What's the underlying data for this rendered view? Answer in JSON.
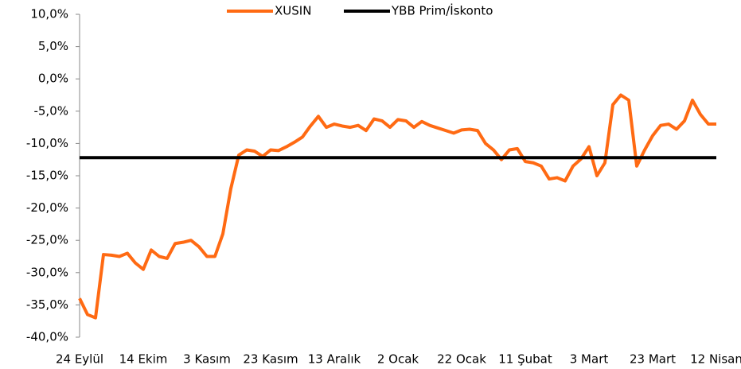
{
  "chart_data": {
    "type": "line",
    "categories": [
      "24 Eylül",
      null,
      null,
      null,
      null,
      null,
      null,
      null,
      "14 Ekim",
      null,
      null,
      null,
      null,
      null,
      null,
      null,
      "3 Kasım",
      null,
      null,
      null,
      null,
      null,
      null,
      null,
      "23 Kasım",
      null,
      null,
      null,
      null,
      null,
      null,
      null,
      "13 Aralık",
      null,
      null,
      null,
      null,
      null,
      null,
      null,
      "2 Ocak",
      null,
      null,
      null,
      null,
      null,
      null,
      null,
      "22 Ocak",
      null,
      null,
      null,
      null,
      null,
      null,
      null,
      "11 Şubat",
      null,
      null,
      null,
      null,
      null,
      null,
      null,
      "3 Mart",
      null,
      null,
      null,
      null,
      null,
      null,
      null,
      "23 Mart",
      null,
      null,
      null,
      null,
      null,
      null,
      null,
      "12 Nisan"
    ],
    "series": [
      {
        "name": "XUSIN",
        "color": "#ff6a13",
        "values": [
          -34,
          -36.5,
          -37,
          -27.2,
          -27.3,
          -27.5,
          -27,
          -28.5,
          -29.5,
          -26.5,
          -27.5,
          -27.8,
          -25.5,
          -25.3,
          -25,
          -26,
          -27.5,
          -27.5,
          -24,
          -17,
          -11.8,
          -11,
          -11.2,
          -12,
          -11,
          -11.1,
          -10.5,
          -9.8,
          -9,
          -7.3,
          -5.8,
          -7.5,
          -7,
          -7.3,
          -7.5,
          -7.2,
          -8,
          -6.2,
          -6.5,
          -7.5,
          -6.3,
          -6.5,
          -7.5,
          -6.6,
          -7.2,
          -7.6,
          -8,
          -8.4,
          -7.9,
          -7.8,
          -8,
          -10,
          -11,
          -12.5,
          -11,
          -10.8,
          -12.8,
          -13,
          -13.5,
          -15.5,
          -15.3,
          -15.8,
          -13.5,
          -12.4,
          -10.5,
          -15,
          -13,
          -4,
          -2.5,
          -3.3,
          -13.5,
          -11,
          -8.8,
          -7.2,
          -7,
          -7.8,
          -6.5,
          -3.3,
          -5.5,
          -7,
          -7
        ]
      },
      {
        "name": "YBB Prim/İskonto",
        "color": "#000000",
        "values": [
          -12.2,
          -12.2,
          -12.2,
          -12.2,
          -12.2,
          -12.2,
          -12.2,
          -12.2,
          -12.2,
          -12.2,
          -12.2,
          -12.2,
          -12.2,
          -12.2,
          -12.2,
          -12.2,
          -12.2,
          -12.2,
          -12.2,
          -12.2,
          -12.2,
          -12.2,
          -12.2,
          -12.2,
          -12.2,
          -12.2,
          -12.2,
          -12.2,
          -12.2,
          -12.2,
          -12.2,
          -12.2,
          -12.2,
          -12.2,
          -12.2,
          -12.2,
          -12.2,
          -12.2,
          -12.2,
          -12.2,
          -12.2,
          -12.2,
          -12.2,
          -12.2,
          -12.2,
          -12.2,
          -12.2,
          -12.2,
          -12.2,
          -12.2,
          -12.2,
          -12.2,
          -12.2,
          -12.2,
          -12.2,
          -12.2,
          -12.2,
          -12.2,
          -12.2,
          -12.2,
          -12.2,
          -12.2,
          -12.2,
          -12.2,
          -12.2,
          -12.2,
          -12.2,
          -12.2,
          -12.2,
          -12.2,
          -12.2,
          -12.2,
          -12.2,
          -12.2,
          -12.2,
          -12.2,
          -12.2,
          -12.2,
          -12.2,
          -12.2,
          -12.2
        ]
      }
    ],
    "ylim": [
      -40,
      10
    ],
    "yticks": [
      {
        "value": -40,
        "label": "-40,0%"
      },
      {
        "value": -35,
        "label": "-35,0%"
      },
      {
        "value": -30,
        "label": "-30,0%"
      },
      {
        "value": -25,
        "label": "-25,0%"
      },
      {
        "value": -20,
        "label": "-20,0%"
      },
      {
        "value": -15,
        "label": "-15,0%"
      },
      {
        "value": -10,
        "label": "-10,0%"
      },
      {
        "value": -5,
        "label": "-5,0%"
      },
      {
        "value": 0,
        "label": "0,0%"
      },
      {
        "value": 5,
        "label": "5,0%"
      },
      {
        "value": 10,
        "label": "10,0%"
      }
    ],
    "grid": false,
    "legend": "top"
  }
}
